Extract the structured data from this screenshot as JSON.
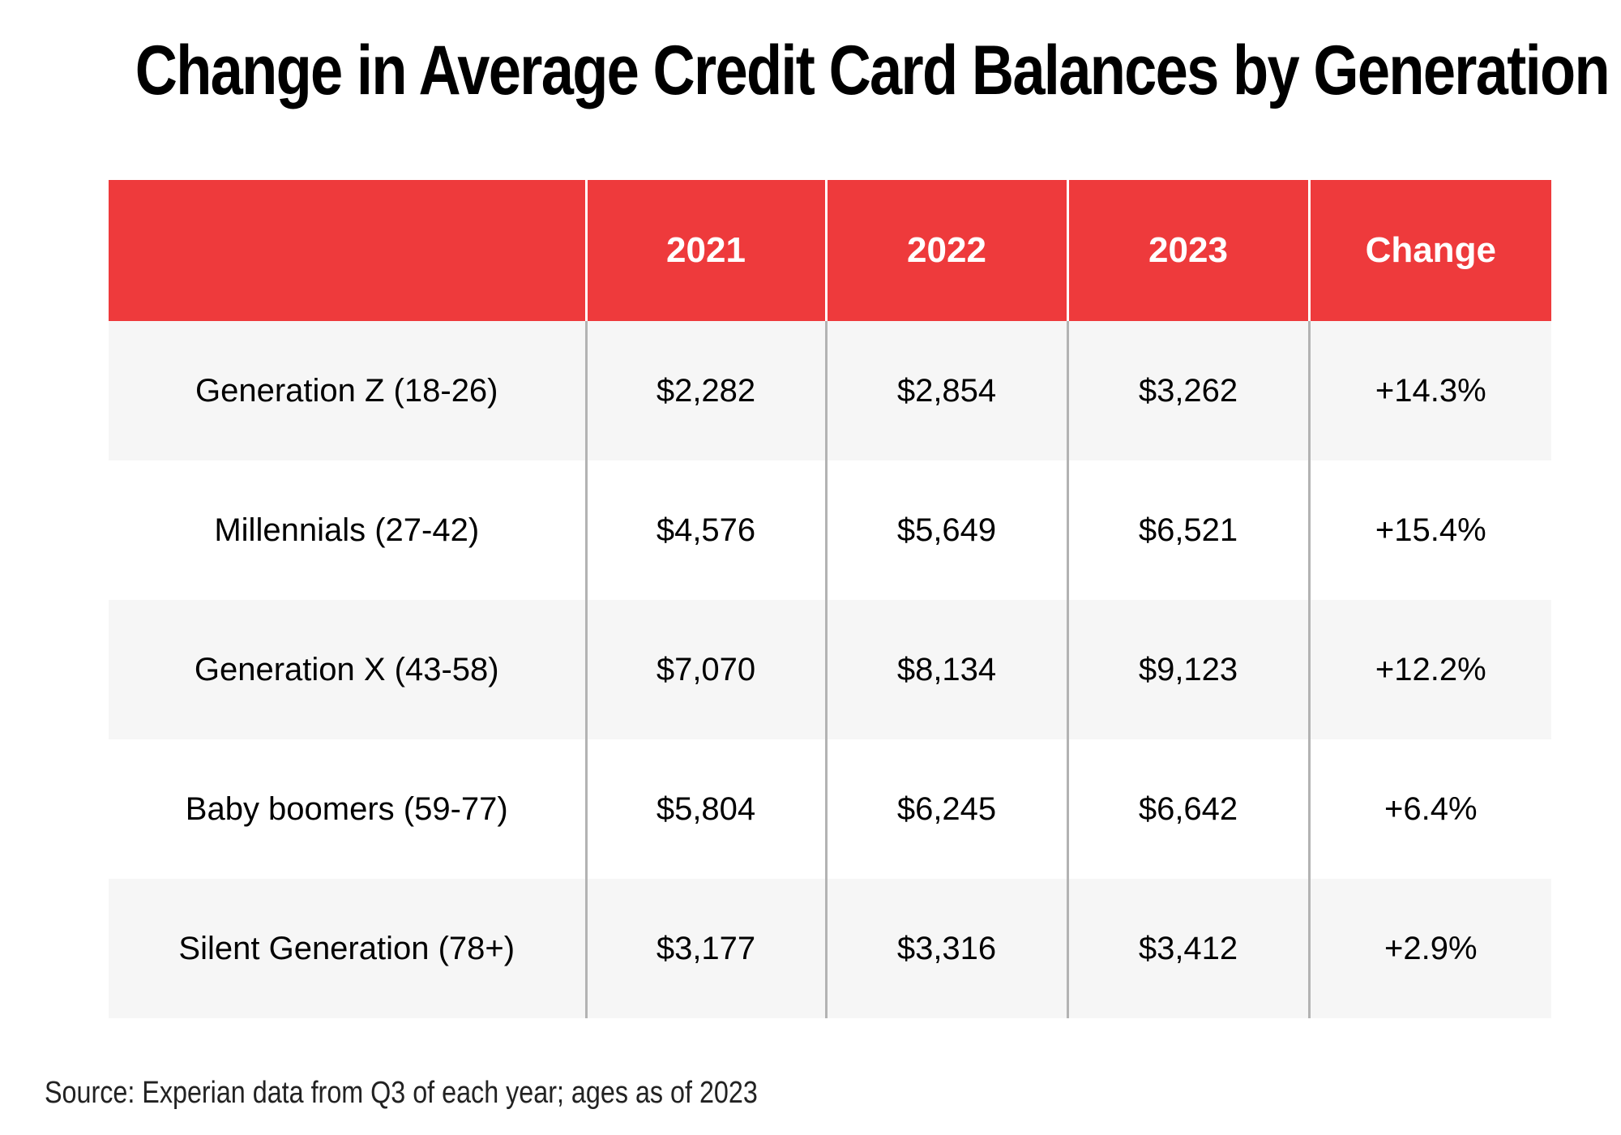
{
  "chart_data": {
    "type": "table",
    "title": "Change in Average Credit Card Balances by Generation",
    "columns": [
      "",
      "2021",
      "2022",
      "2023",
      "Change"
    ],
    "rows": [
      {
        "label": "Generation Z (18-26)",
        "v2021": "$2,282",
        "v2022": "$2,854",
        "v2023": "$3,262",
        "change": "+14.3%"
      },
      {
        "label": "Millennials (27-42)",
        "v2021": "$4,576",
        "v2022": "$5,649",
        "v2023": "$6,521",
        "change": "+15.4%"
      },
      {
        "label": "Generation X (43-58)",
        "v2021": "$7,070",
        "v2022": "$8,134",
        "v2023": "$9,123",
        "change": "+12.2%"
      },
      {
        "label": "Baby boomers (59-77)",
        "v2021": "$5,804",
        "v2022": "$6,245",
        "v2023": "$6,642",
        "change": "+6.4%"
      },
      {
        "label": "Silent Generation (78+)",
        "v2021": "$3,177",
        "v2022": "$3,316",
        "v2023": "$3,412",
        "change": "+2.9%"
      }
    ],
    "source": "Source: Experian data from Q3 of each year; ages as of 2023"
  },
  "colors": {
    "header_bg": "#ee3a3c",
    "header_text": "#ffffff",
    "row_shaded": "#f6f6f6",
    "row_plain": "#ffffff",
    "divider": "#b3b3b3"
  }
}
